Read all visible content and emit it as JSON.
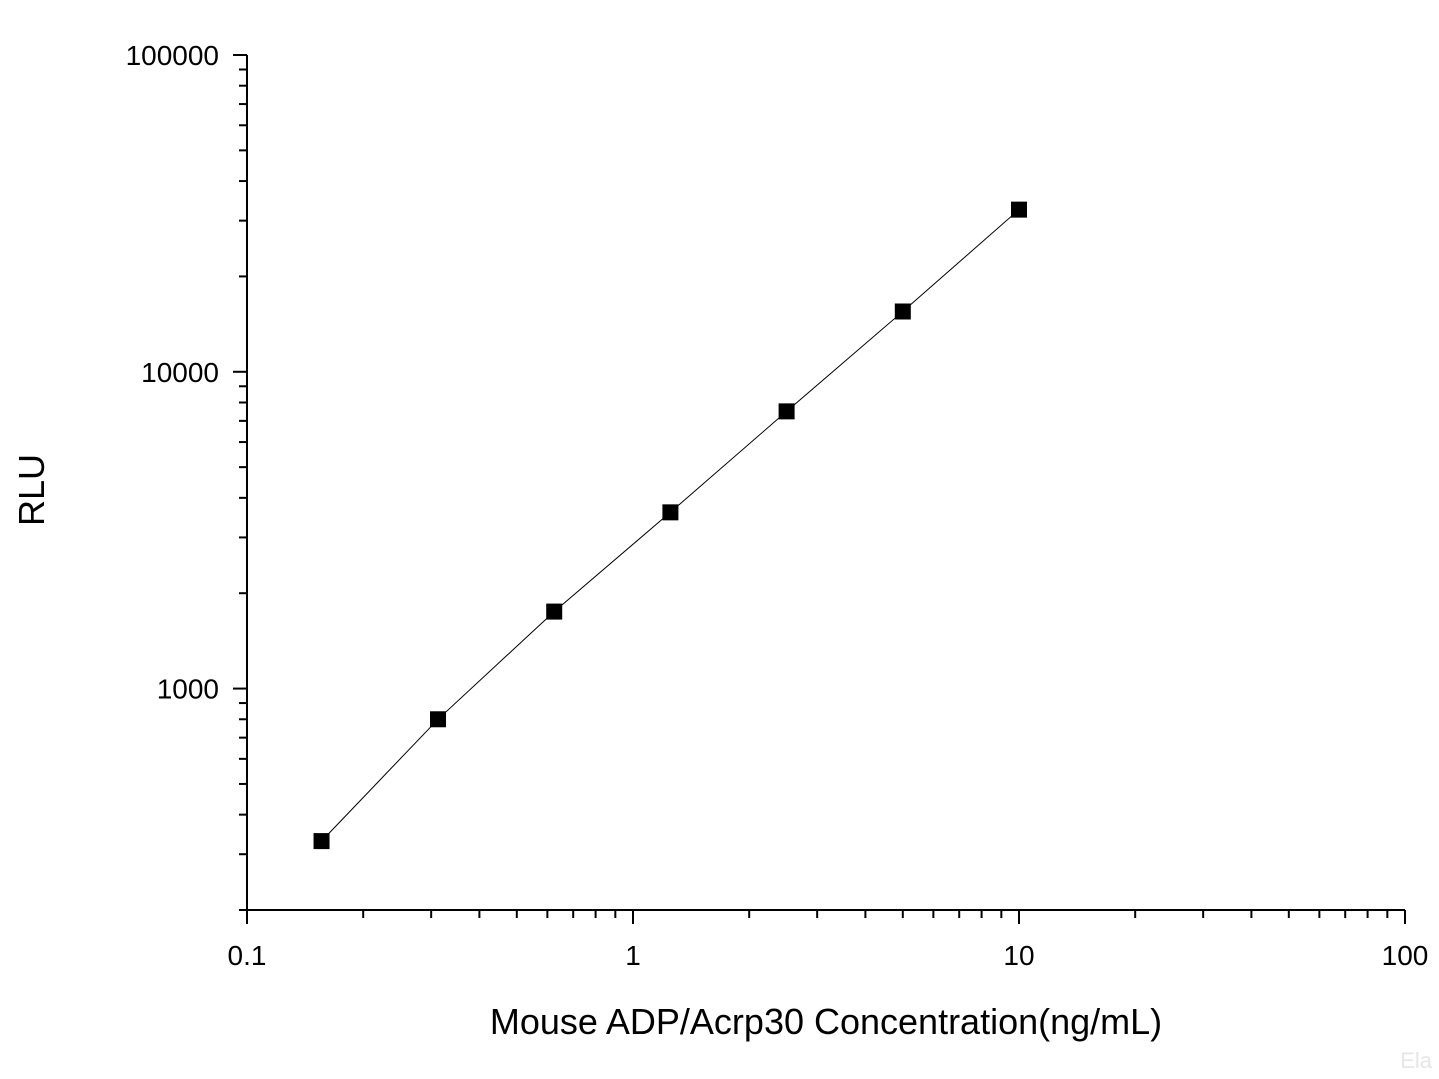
{
  "chart_data": {
    "type": "scatter",
    "title": "",
    "xlabel": "Mouse ADP/Acrp30 Concentration(ng/mL)",
    "ylabel": "RLU",
    "x_scale": "log",
    "y_scale": "log",
    "xlim": [
      0.1,
      100
    ],
    "ylim": [
      200,
      100000
    ],
    "x_ticks": [
      0.1,
      1,
      10,
      100
    ],
    "x_tick_labels": [
      "0.1",
      "1",
      "10",
      "100"
    ],
    "y_ticks": [
      1000,
      10000,
      100000
    ],
    "y_tick_labels": [
      "1000",
      "10000",
      "100000"
    ],
    "grid": false,
    "legend": "none",
    "marker": "square",
    "fit_line": true,
    "series": [
      {
        "x": [
          0.156,
          0.3125,
          0.625,
          1.25,
          2.5,
          5,
          10
        ],
        "y": [
          330,
          800,
          1750,
          3600,
          7500,
          15500,
          32500
        ]
      }
    ],
    "watermark": "Ela",
    "colors": {
      "marker": "#000000",
      "line": "#000000",
      "axis": "#000000"
    }
  }
}
